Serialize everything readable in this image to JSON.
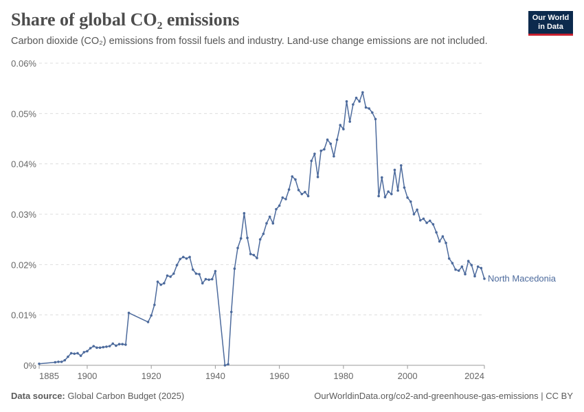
{
  "header": {
    "title": "Share of global CO₂ emissions",
    "subtitle": "Carbon dioxide (CO₂) emissions from fossil fuels and industry. Land-use change emissions are not included.",
    "logo_line1": "Our World",
    "logo_line2": "in Data"
  },
  "footer": {
    "source_label": "Data source:",
    "source_value": "Global Carbon Budget (2025)",
    "url": "OurWorldinData.org/co2-and-greenhouse-gas-emissions | CC BY"
  },
  "colors": {
    "series": "#4c6a9c",
    "grid": "#dddddd",
    "axis": "#999999"
  },
  "chart_data": {
    "type": "line",
    "title": "Share of global CO₂ emissions",
    "xlim": [
      1885,
      2024
    ],
    "ylim": [
      0,
      0.06
    ],
    "x_ticks": [
      1885,
      1900,
      1920,
      1940,
      1960,
      1980,
      2000,
      2024
    ],
    "x_tick_labels": [
      "1885",
      "1900",
      "1920",
      "1940",
      "1960",
      "1980",
      "2000",
      "2024"
    ],
    "y_ticks": [
      0,
      0.01,
      0.02,
      0.03,
      0.04,
      0.05,
      0.06
    ],
    "y_tick_labels": [
      "0%",
      "0.01%",
      "0.02%",
      "0.03%",
      "0.04%",
      "0.05%",
      "0.06%"
    ],
    "grid": true,
    "series": [
      {
        "name": "North Macedonia",
        "x": [
          1885,
          1890,
          1891,
          1892,
          1893,
          1894,
          1895,
          1896,
          1897,
          1898,
          1899,
          1900,
          1901,
          1902,
          1903,
          1904,
          1905,
          1906,
          1907,
          1908,
          1909,
          1910,
          1911,
          1912,
          1913,
          1919,
          1920,
          1921,
          1922,
          1923,
          1924,
          1925,
          1926,
          1927,
          1928,
          1929,
          1930,
          1931,
          1932,
          1933,
          1934,
          1935,
          1936,
          1937,
          1938,
          1939,
          1940,
          1943,
          1944,
          1945,
          1946,
          1947,
          1948,
          1949,
          1950,
          1951,
          1952,
          1953,
          1954,
          1955,
          1956,
          1957,
          1958,
          1959,
          1960,
          1961,
          1962,
          1963,
          1964,
          1965,
          1966,
          1967,
          1968,
          1969,
          1970,
          1971,
          1972,
          1973,
          1974,
          1975,
          1976,
          1977,
          1978,
          1979,
          1980,
          1981,
          1982,
          1983,
          1984,
          1985,
          1986,
          1987,
          1988,
          1989,
          1990,
          1991,
          1992,
          1993,
          1994,
          1995,
          1996,
          1997,
          1998,
          1999,
          2000,
          2001,
          2002,
          2003,
          2004,
          2005,
          2006,
          2007,
          2008,
          2009,
          2010,
          2011,
          2012,
          2013,
          2014,
          2015,
          2016,
          2017,
          2018,
          2019,
          2020,
          2021,
          2022,
          2023,
          2024
        ],
        "values": [
          0.0003,
          0.0006,
          0.0007,
          0.0007,
          0.001,
          0.0017,
          0.0024,
          0.0023,
          0.0024,
          0.0019,
          0.0026,
          0.0028,
          0.0034,
          0.0038,
          0.0035,
          0.0035,
          0.0036,
          0.0037,
          0.0038,
          0.0043,
          0.0039,
          0.0042,
          0.0042,
          0.0041,
          0.0104,
          0.0086,
          0.0099,
          0.012,
          0.0166,
          0.016,
          0.0163,
          0.0178,
          0.0176,
          0.0182,
          0.0199,
          0.0211,
          0.0215,
          0.0212,
          0.0215,
          0.019,
          0.0182,
          0.0181,
          0.0163,
          0.0171,
          0.017,
          0.0171,
          0.0187,
          0.0,
          0.0002,
          0.0106,
          0.0192,
          0.0233,
          0.0252,
          0.0302,
          0.0253,
          0.0221,
          0.0219,
          0.0213,
          0.025,
          0.0261,
          0.0282,
          0.0295,
          0.0282,
          0.031,
          0.0317,
          0.0333,
          0.033,
          0.0349,
          0.0375,
          0.0369,
          0.0348,
          0.034,
          0.0344,
          0.0336,
          0.0406,
          0.042,
          0.0374,
          0.0426,
          0.0429,
          0.0448,
          0.044,
          0.0415,
          0.0448,
          0.0477,
          0.0469,
          0.0524,
          0.0484,
          0.0518,
          0.0531,
          0.0524,
          0.0542,
          0.0512,
          0.051,
          0.0502,
          0.0489,
          0.0336,
          0.0373,
          0.0334,
          0.0345,
          0.034,
          0.0388,
          0.0347,
          0.0397,
          0.0353,
          0.0333,
          0.0325,
          0.03,
          0.0309,
          0.0288,
          0.0291,
          0.0283,
          0.0287,
          0.028,
          0.0264,
          0.0246,
          0.0256,
          0.0243,
          0.0212,
          0.0203,
          0.019,
          0.0188,
          0.0196,
          0.0181,
          0.0207,
          0.0199,
          0.0177,
          0.0196,
          0.0193,
          0.0172
        ]
      }
    ]
  }
}
